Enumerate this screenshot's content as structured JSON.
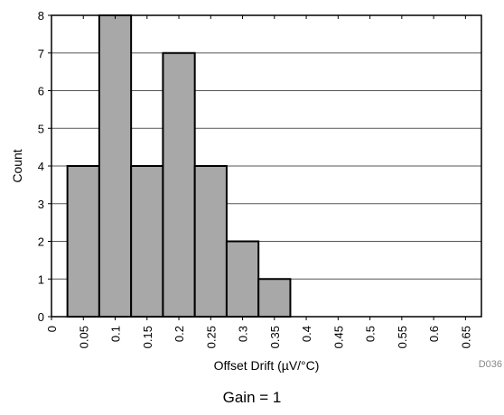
{
  "chart_data": {
    "type": "bar",
    "categories": [
      "0.05",
      "0.1",
      "0.15",
      "0.2",
      "0.25",
      "0.3",
      "0.35",
      "0.4",
      "0.45",
      "0.5",
      "0.55",
      "0.6",
      "0.65"
    ],
    "values": [
      4,
      8,
      4,
      7,
      4,
      2,
      1,
      0,
      0,
      0,
      0,
      0,
      0
    ],
    "x_ticks": [
      "0",
      "0.05",
      "0.1",
      "0.15",
      "0.2",
      "0.25",
      "0.3",
      "0.35",
      "0.4",
      "0.45",
      "0.5",
      "0.55",
      "0.6",
      "0.65"
    ],
    "y_ticks": [
      "0",
      "1",
      "2",
      "3",
      "4",
      "5",
      "6",
      "7",
      "8"
    ],
    "xlabel": "Offset Drift (µV/°C)",
    "ylabel": "Count",
    "ylim": [
      0,
      8
    ],
    "xlim": [
      0,
      0.675
    ],
    "bin_width": 0.05,
    "grid": "horizontal",
    "bar_color": "#a8a8a8",
    "caption": "Gain = 1",
    "figure_code": "D036"
  }
}
